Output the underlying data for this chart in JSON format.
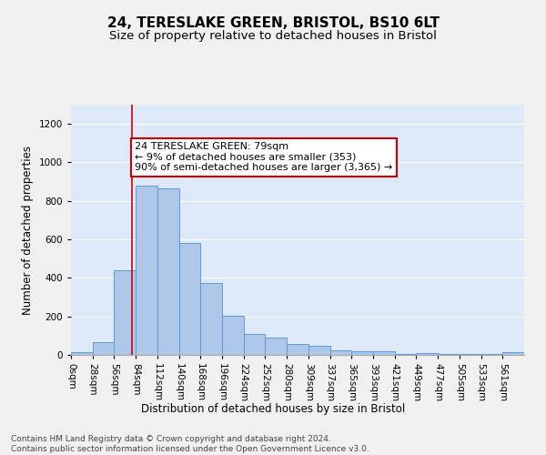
{
  "title1": "24, TERESLAKE GREEN, BRISTOL, BS10 6LT",
  "title2": "Size of property relative to detached houses in Bristol",
  "xlabel": "Distribution of detached houses by size in Bristol",
  "ylabel": "Number of detached properties",
  "footnote": "Contains HM Land Registry data © Crown copyright and database right 2024.\nContains public sector information licensed under the Open Government Licence v3.0.",
  "annotation_text": "24 TERESLAKE GREEN: 79sqm\n← 9% of detached houses are smaller (353)\n90% of semi-detached houses are larger (3,365) →",
  "bin_labels": [
    "0sqm",
    "28sqm",
    "56sqm",
    "84sqm",
    "112sqm",
    "140sqm",
    "168sqm",
    "196sqm",
    "224sqm",
    "252sqm",
    "280sqm",
    "309sqm",
    "337sqm",
    "365sqm",
    "393sqm",
    "421sqm",
    "449sqm",
    "477sqm",
    "505sqm",
    "533sqm",
    "561sqm"
  ],
  "bar_values": [
    13,
    68,
    440,
    880,
    865,
    580,
    375,
    205,
    110,
    88,
    58,
    48,
    22,
    18,
    18,
    5,
    8,
    5,
    5,
    5,
    12
  ],
  "bar_color": "#aec6e8",
  "bar_edge_color": "#5b9bd5",
  "bg_color": "#dde8f8",
  "grid_color": "#ffffff",
  "annotation_box_color": "#ffffff",
  "annotation_box_edge": "#cc0000",
  "red_line_color": "#cc0000",
  "ylim": [
    0,
    1300
  ],
  "yticks": [
    0,
    200,
    400,
    600,
    800,
    1000,
    1200
  ],
  "title1_fontsize": 11,
  "title2_fontsize": 9.5,
  "axis_label_fontsize": 8.5,
  "tick_fontsize": 7.5,
  "annotation_fontsize": 8,
  "footnote_fontsize": 6.5
}
